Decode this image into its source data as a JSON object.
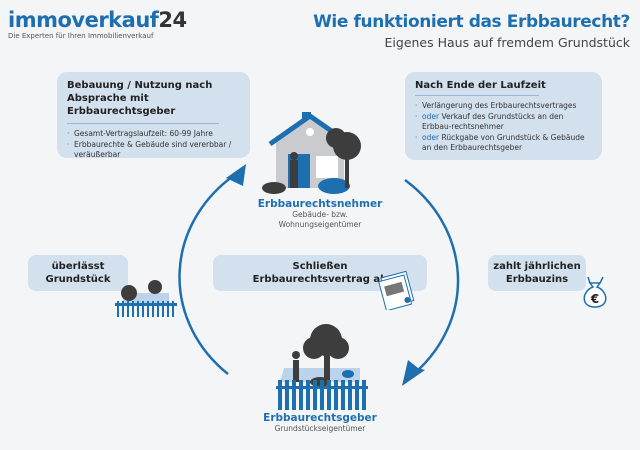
{
  "header": {
    "logo_text": "immoverkauf",
    "logo_number": "24",
    "tagline": "Die Experten für Ihren Immobilienverkauf",
    "title": "Wie funktioniert das Erbbaurecht?",
    "subtitle": "Eigenes Haus auf fremdem Grundstück"
  },
  "left_box": {
    "heading": "Bebauung / Nutzung nach Absprache mit Erbbaurechtsgeber",
    "items": [
      "Gesamt-Vertragslaufzeit: 60-99 Jahre",
      "Erbbaurechte & Gebäude sind vererbbar / veräußerbar"
    ]
  },
  "right_box": {
    "heading": "Nach Ende der Laufzeit",
    "items": [
      {
        "prefix": "",
        "text": "Verlängerung des Erbbaurechtsvertrages"
      },
      {
        "prefix": "oder",
        "text": " Verkauf des Grundstücks an den Erbbau-rechtsnehmer"
      },
      {
        "prefix": "oder",
        "text": " Rückgabe von Grundstück & Gebäude an den Erbbaurechtsgeber"
      }
    ]
  },
  "nehmer": {
    "title": "Erbbaurechtsnehmer",
    "line1": "Gebäude- bzw.",
    "line2": "Wohnungseigentümer"
  },
  "geber": {
    "title": "Erbbaurechtsgeber",
    "line1": "Grundstückseigentümer"
  },
  "labels": {
    "left": [
      "überlässt",
      "Grundstück"
    ],
    "center": [
      "Schließen",
      "Erbbaurechtsvertrag ab"
    ],
    "right": [
      "zahlt jährlichen",
      "Erbbauzins"
    ]
  },
  "icons": {
    "euro": "€"
  },
  "colors": {
    "accent": "#1e6fb0",
    "box": "#d3e0ee",
    "dark": "#444444"
  }
}
